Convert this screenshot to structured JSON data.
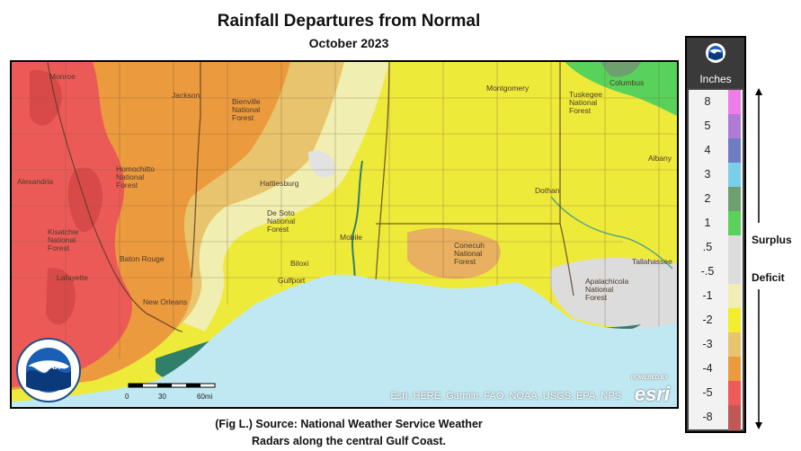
{
  "title": "Rainfall Departures from Normal",
  "subtitle": "October 2023",
  "caption_lines": [
    "(Fig L.) Source: National Weather Service Weather",
    "Radars along the central Gulf Coast."
  ],
  "map": {
    "cities": [
      {
        "name": "Monroe"
      },
      {
        "name": "Jackson"
      },
      {
        "name": "Bienville National Forest"
      },
      {
        "name": "Alexandria"
      },
      {
        "name": "Homochitto National Forest"
      },
      {
        "name": "Hattiesburg"
      },
      {
        "name": "De Soto National Forest"
      },
      {
        "name": "Mobile"
      },
      {
        "name": "Biloxi"
      },
      {
        "name": "Gulfport"
      },
      {
        "name": "Baton Rouge"
      },
      {
        "name": "Lafayette"
      },
      {
        "name": "New Orleans"
      },
      {
        "name": "Montgomery"
      },
      {
        "name": "Columbus"
      },
      {
        "name": "Albany"
      },
      {
        "name": "Dothan"
      },
      {
        "name": "Conecuh National Forest"
      },
      {
        "name": "Tallahassee"
      },
      {
        "name": "Apalachicola National Forest"
      },
      {
        "name": "Tuskegee National Forest"
      },
      {
        "name": "Kisatchie National Forest"
      }
    ],
    "attribution": "Esri, HERE, Garmin, FAO, NOAA, USGS, EPA, NPS",
    "esri_logo": "esri",
    "esri_powered": "POWERED BY",
    "scale_labels": [
      "0",
      "30",
      "60mi"
    ]
  },
  "legend": {
    "unit": "Inches",
    "bins": [
      {
        "label": "8",
        "color": "#ee7de8"
      },
      {
        "label": "5",
        "color": "#b07ad8"
      },
      {
        "label": "4",
        "color": "#6f7bc2"
      },
      {
        "label": "3",
        "color": "#79cfe8"
      },
      {
        "label": "2",
        "color": "#6e9f6e"
      },
      {
        "label": "1",
        "color": "#58d25a"
      },
      {
        "label": ".5",
        "color": "#dcdcdc"
      },
      {
        "label": "-.5",
        "color": "#dcdcdc"
      },
      {
        "label": "-1",
        "color": "#f0eeb0"
      },
      {
        "label": "-2",
        "color": "#f2ee2c"
      },
      {
        "label": "-3",
        "color": "#e8c46e"
      },
      {
        "label": "-4",
        "color": "#ec9a3e"
      },
      {
        "label": "-5",
        "color": "#ef5a58"
      },
      {
        "label": "-8",
        "color": "#c05858"
      }
    ],
    "surplus_label": "Surplus",
    "deficit_label": "Deficit"
  },
  "colors": {
    "water": "#bfe8f2",
    "deep_red": "#ec5a58",
    "orange": "#ec9a3e",
    "light_orange": "#e8c46e",
    "pale": "#f0eeb0",
    "yellow": "#eeea3a",
    "neutral": "#dcdcdc",
    "green": "#58d25a",
    "teal": "#2f7f6a",
    "border": "#7a5a3a"
  }
}
